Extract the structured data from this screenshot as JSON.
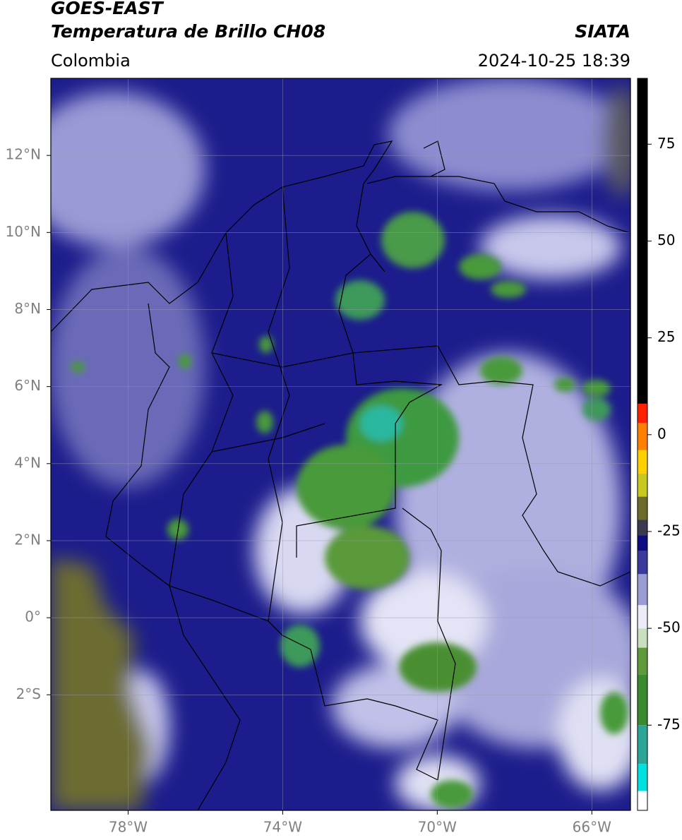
{
  "header": {
    "title": "GOES-EAST",
    "subtitle": "Temperatura de Brillo CH08",
    "source": "SIATA",
    "region": "Colombia",
    "timestamp": "2024-10-25 18:39"
  },
  "map": {
    "xlim": [
      -80,
      -65
    ],
    "ylim": [
      -5,
      14
    ],
    "grid": true,
    "xticks": [
      {
        "value": -78,
        "label": "78°W"
      },
      {
        "value": -74,
        "label": "74°W"
      },
      {
        "value": -70,
        "label": "70°W"
      },
      {
        "value": -66,
        "label": "66°W"
      }
    ],
    "yticks": [
      {
        "value": 12,
        "label": "12°N"
      },
      {
        "value": 10,
        "label": "10°N"
      },
      {
        "value": 8,
        "label": "8°N"
      },
      {
        "value": 6,
        "label": "6°N"
      },
      {
        "value": 4,
        "label": "4°N"
      },
      {
        "value": 2,
        "label": "2°N"
      },
      {
        "value": 0,
        "label": "0°"
      },
      {
        "value": -2,
        "label": "2°S"
      }
    ],
    "colorbar": {
      "lim": [
        -97,
        92
      ],
      "ticks": [
        75,
        50,
        25,
        0,
        -25,
        -50,
        -75
      ],
      "segments": [
        {
          "from": -97,
          "to": -92,
          "color": "#ffffff"
        },
        {
          "from": -92,
          "to": -85,
          "color": "#00e0e0"
        },
        {
          "from": -85,
          "to": -75,
          "color": "#2aa596"
        },
        {
          "from": -75,
          "to": -62,
          "color": "#3c8a30"
        },
        {
          "from": -62,
          "to": -55,
          "color": "#5e9a3a"
        },
        {
          "from": -55,
          "to": -50,
          "color": "#c8e0c0"
        },
        {
          "from": -50,
          "to": -44,
          "color": "#ececf6"
        },
        {
          "from": -44,
          "to": -36,
          "color": "#9c9cd4"
        },
        {
          "from": -36,
          "to": -30,
          "color": "#3a3a9c"
        },
        {
          "from": -30,
          "to": -26,
          "color": "#0c0c80"
        },
        {
          "from": -26,
          "to": -22,
          "color": "#3a3a50"
        },
        {
          "from": -22,
          "to": -16,
          "color": "#6c6c2a"
        },
        {
          "from": -16,
          "to": -10,
          "color": "#c8c820"
        },
        {
          "from": -10,
          "to": -4,
          "color": "#ffd000"
        },
        {
          "from": -4,
          "to": 3,
          "color": "#ff8000"
        },
        {
          "from": 3,
          "to": 8,
          "color": "#ff2000"
        },
        {
          "from": 8,
          "to": 92,
          "color": "#000000"
        }
      ]
    }
  }
}
